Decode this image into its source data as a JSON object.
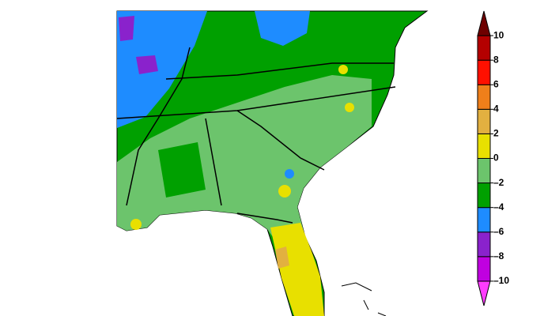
{
  "colorbar": {
    "lim": [
      -12,
      12
    ],
    "ticks": [
      {
        "value": -10,
        "label": "–10"
      },
      {
        "value": -8,
        "label": "–8"
      },
      {
        "value": -6,
        "label": "–6"
      },
      {
        "value": -4,
        "label": "–4"
      },
      {
        "value": -2,
        "label": "–2"
      },
      0,
      2,
      4,
      6,
      8,
      10
    ],
    "colors": [
      "#ff3cff",
      "#c000e0",
      "#8a22cc",
      "#1e8cff",
      "#00a000",
      "#6cc46c",
      "#e8e000",
      "#e2b040",
      "#ef7f1a",
      "#ff1000",
      "#b40000",
      "#6e0000"
    ]
  }
}
